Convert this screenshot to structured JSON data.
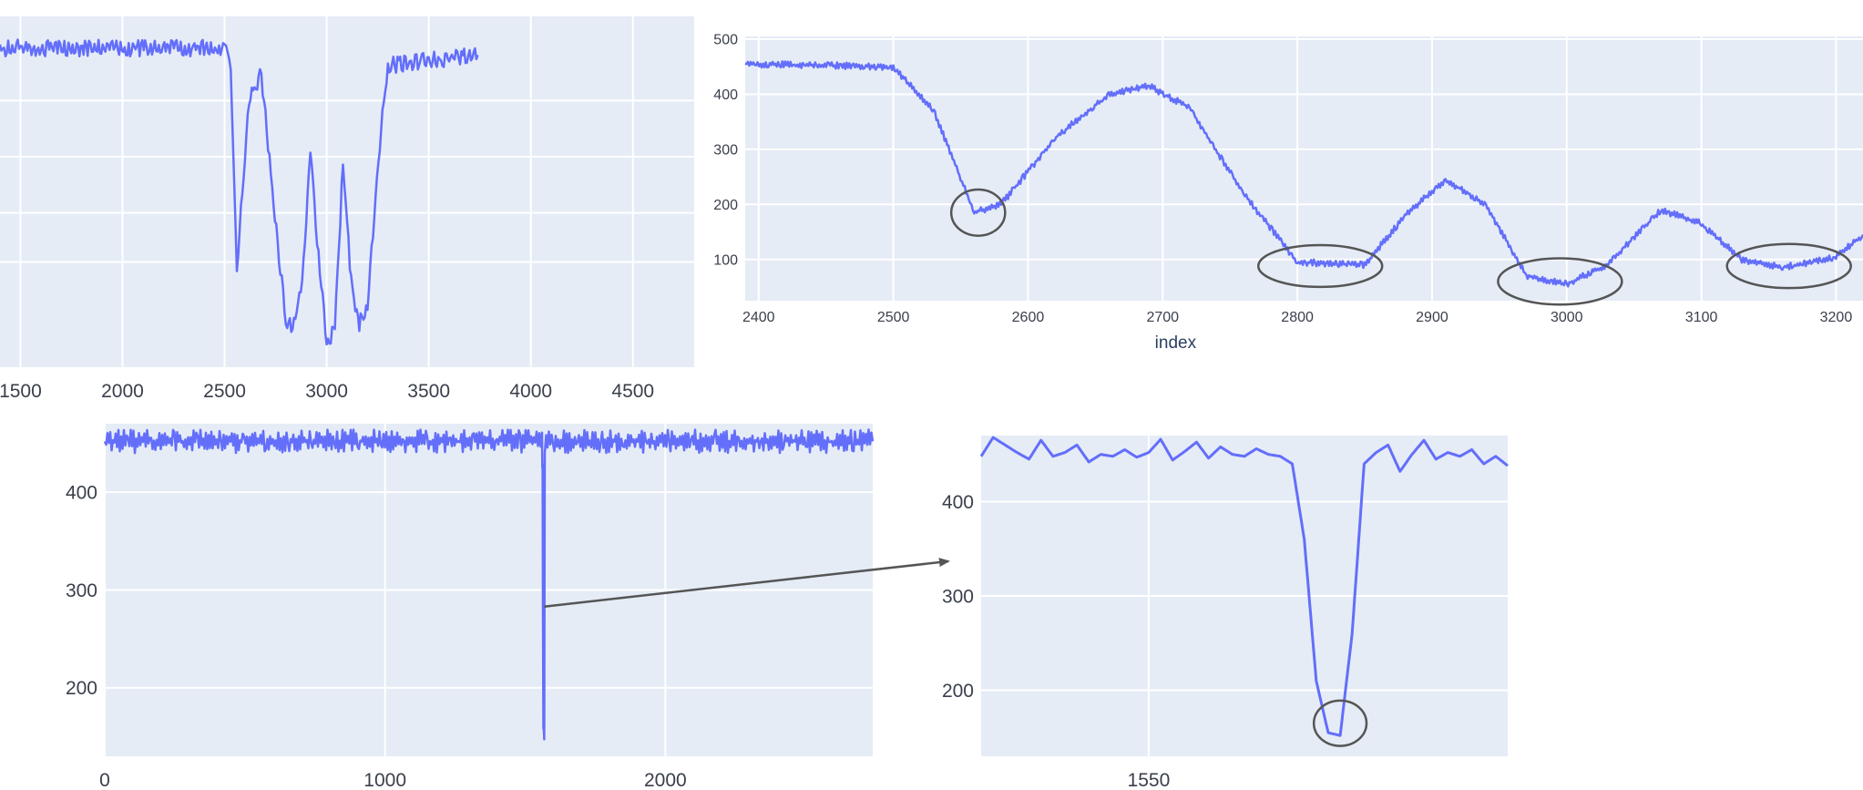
{
  "colors": {
    "plot_bg": "#e5ecf6",
    "grid": "#ffffff",
    "line": "#636efa",
    "annotation": "#555555",
    "tick_text": "#3a3f4b"
  },
  "chart_data": [
    {
      "id": "panel-a",
      "type": "line",
      "title": "",
      "xlabel": "",
      "ylabel": "",
      "xlim": [
        1400,
        4800
      ],
      "ylim": [
        0,
        500
      ],
      "xticks": [
        1500,
        2000,
        2500,
        3000,
        3500,
        4000,
        4500
      ],
      "yticks": [],
      "grid": true,
      "series": [
        {
          "x": [
            1400,
            2500,
            2530,
            2560,
            2620,
            2680,
            2740,
            2800,
            2840,
            2880,
            2920,
            2960,
            3000,
            3040,
            3080,
            3120,
            3160,
            3200,
            3260,
            3300,
            3740
          ],
          "y": [
            455,
            455,
            420,
            140,
            380,
            420,
            230,
            65,
            60,
            120,
            310,
            160,
            30,
            60,
            290,
            120,
            60,
            90,
            320,
            430,
            445
          ]
        }
      ],
      "annotations": []
    },
    {
      "id": "panel-b",
      "type": "line",
      "title": "",
      "xlabel": "index",
      "ylabel": "",
      "xlim": [
        2390,
        3220
      ],
      "ylim": [
        25,
        505
      ],
      "xticks": [
        2400,
        2500,
        2600,
        2700,
        2800,
        2900,
        3000,
        3100,
        3200
      ],
      "yticks": [
        100,
        200,
        300,
        400,
        500
      ],
      "grid": true,
      "series": [
        {
          "x": [
            2390,
            2500,
            2530,
            2560,
            2580,
            2620,
            2660,
            2690,
            2720,
            2760,
            2800,
            2850,
            2880,
            2910,
            2940,
            2970,
            3000,
            3030,
            3070,
            3100,
            3130,
            3160,
            3200,
            3220
          ],
          "y": [
            455,
            450,
            370,
            185,
            200,
            320,
            400,
            415,
            375,
            220,
            95,
            90,
            180,
            245,
            200,
            70,
            55,
            90,
            190,
            165,
            100,
            85,
            105,
            145
          ]
        }
      ],
      "annotations": [
        {
          "type": "ellipse",
          "x": 2563,
          "y": 185,
          "rx": 20,
          "ry": 42
        },
        {
          "type": "ellipse",
          "x": 2817,
          "y": 88,
          "rx": 46,
          "ry": 38
        },
        {
          "type": "ellipse",
          "x": 2995,
          "y": 60,
          "rx": 46,
          "ry": 42
        },
        {
          "type": "ellipse",
          "x": 3165,
          "y": 88,
          "rx": 46,
          "ry": 40
        }
      ]
    },
    {
      "id": "panel-c",
      "type": "line",
      "title": "",
      "xlabel": "",
      "ylabel": "",
      "xlim": [
        0,
        2740
      ],
      "ylim": [
        130,
        470
      ],
      "xticks": [
        0,
        1000,
        2000
      ],
      "yticks": [
        200,
        300,
        400
      ],
      "grid": true,
      "series": [
        {
          "x": [
            0,
            1560,
            1562,
            1565,
            1568,
            1570,
            2740
          ],
          "y": [
            452,
            452,
            420,
            150,
            150,
            452,
            452
          ]
        }
      ],
      "annotations": [
        {
          "type": "arrow",
          "from": {
            "x": 1568,
            "y": 283
          }
        }
      ]
    },
    {
      "id": "panel-d",
      "type": "line",
      "title": "",
      "xlabel": "",
      "ylabel": "",
      "xlim": [
        1536,
        1580
      ],
      "ylim": [
        130,
        470
      ],
      "xticks": [
        1550
      ],
      "yticks": [
        200,
        300,
        400
      ],
      "grid": true,
      "series": [
        {
          "x": [
            1536,
            1537,
            1538,
            1539,
            1540,
            1541,
            1542,
            1543,
            1544,
            1545,
            1546,
            1547,
            1548,
            1549,
            1550,
            1551,
            1552,
            1553,
            1554,
            1555,
            1556,
            1557,
            1558,
            1559,
            1560,
            1561,
            1562,
            1563,
            1564,
            1565,
            1566,
            1567,
            1568,
            1569,
            1570,
            1571,
            1572,
            1573,
            1574,
            1575,
            1576,
            1577,
            1578,
            1579,
            1580
          ],
          "y": [
            448,
            468,
            460,
            452,
            445,
            465,
            448,
            452,
            460,
            442,
            450,
            448,
            455,
            447,
            452,
            466,
            444,
            453,
            463,
            446,
            458,
            450,
            448,
            456,
            450,
            448,
            440,
            360,
            210,
            155,
            152,
            260,
            440,
            452,
            460,
            432,
            450,
            465,
            445,
            452,
            448,
            455,
            440,
            448,
            438
          ]
        }
      ],
      "annotations": [
        {
          "type": "ellipse",
          "x": 1566,
          "y": 165,
          "rx": 2.2,
          "ry": 24
        }
      ]
    }
  ]
}
